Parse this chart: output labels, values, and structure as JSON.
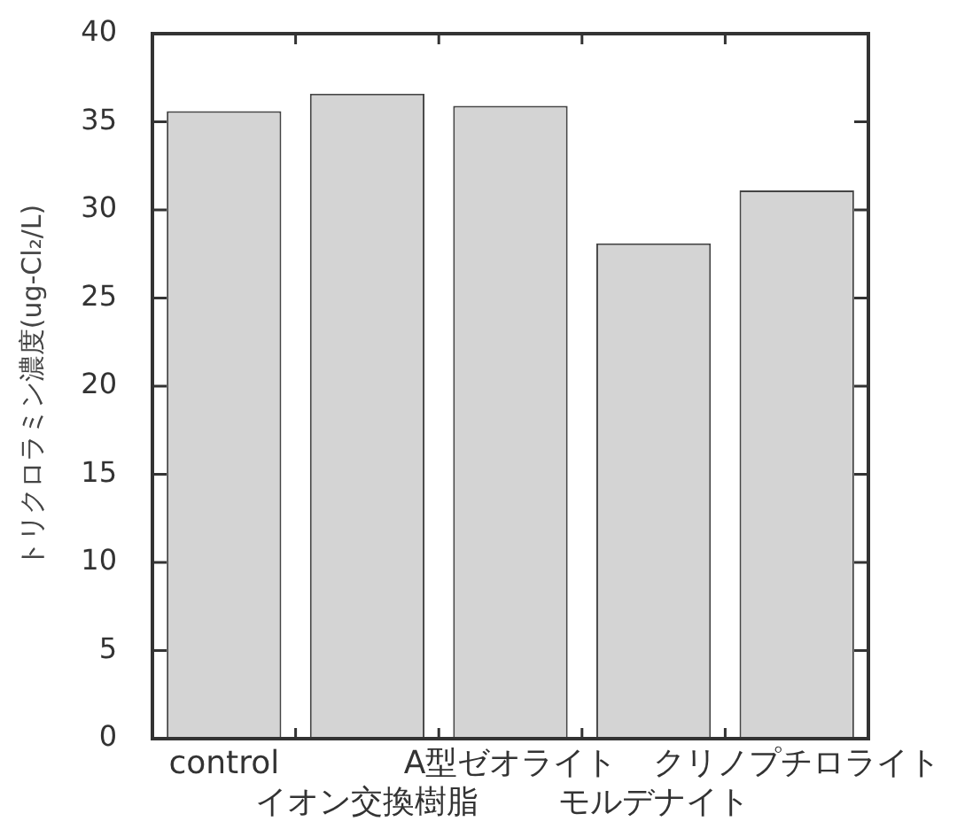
{
  "chart_data": {
    "type": "bar",
    "ylabel": "トリクロラミン濃度(ug-Cl₂/L)",
    "categories": [
      "control",
      "イオン交換樹脂",
      "A型ゼオライト",
      "モルデナイト",
      "クリノプチロライト"
    ],
    "values": [
      35.6,
      36.6,
      35.9,
      28.1,
      31.1
    ],
    "color": "#d4d4d4",
    "ylim": [
      0,
      40
    ],
    "yticks": [
      0,
      5,
      10,
      15,
      20,
      25,
      30,
      35,
      40
    ]
  }
}
